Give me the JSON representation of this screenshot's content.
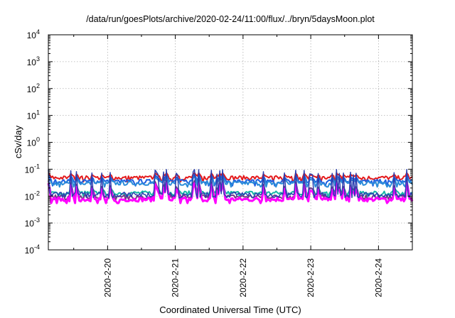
{
  "chart_data": {
    "type": "line",
    "title": "/data/run/goesPlots/archive/2020-02-24/11:00/flux/../bryn/5daysMoon.plot",
    "xlabel": "Coordinated Universal Time (UTC)",
    "ylabel": "cSv/day",
    "y_scale": "log",
    "ylim": [
      0.0001,
      10000
    ],
    "xlim": [
      "2020-02-19 03:00",
      "2020-02-24 12:00"
    ],
    "grid": true,
    "y_ticks": [
      {
        "value": 0.0001,
        "base": "10",
        "exp": "-4"
      },
      {
        "value": 0.001,
        "base": "10",
        "exp": "-3"
      },
      {
        "value": 0.01,
        "base": "10",
        "exp": "-2"
      },
      {
        "value": 0.1,
        "base": "10",
        "exp": "-1"
      },
      {
        "value": 1,
        "base": "10",
        "exp": "0"
      },
      {
        "value": 10,
        "base": "10",
        "exp": "1"
      },
      {
        "value": 100,
        "base": "10",
        "exp": "2"
      },
      {
        "value": 1000,
        "base": "10",
        "exp": "3"
      },
      {
        "value": 10000,
        "base": "10",
        "exp": "4"
      }
    ],
    "x_ticks": [
      "2020-2-20",
      "2020-2-21",
      "2020-2-22",
      "2020-2-23",
      "2020-2-24"
    ],
    "x_tick_dates": [
      "2020-02-20 00:00",
      "2020-02-21 00:00",
      "2020-02-22 00:00",
      "2020-02-23 00:00",
      "2020-02-24 00:00"
    ],
    "series": [
      {
        "color": "#e41a1c",
        "baseline": 0.048,
        "peak": 0.075,
        "dip": 0.034
      },
      {
        "color": "#1f5fe0",
        "baseline": 0.035,
        "peak": 0.065,
        "dip": 0.024
      },
      {
        "color": "#2b8cd9",
        "baseline": 0.03,
        "peak": 0.055,
        "dip": 0.022
      },
      {
        "color": "#1ab8a8",
        "baseline": 0.013,
        "peak": 0.028,
        "dip": 0.0095
      },
      {
        "color": "#7a3a8a",
        "baseline": 0.0095,
        "peak": 0.04,
        "dip": 0.0075
      },
      {
        "color": "#ff00ff",
        "baseline": 0.0075,
        "peak": 0.032,
        "dip": 0.0055
      }
    ],
    "spike_series": {
      "color": "#2a3fb0",
      "peak_max": 0.14
    }
  }
}
